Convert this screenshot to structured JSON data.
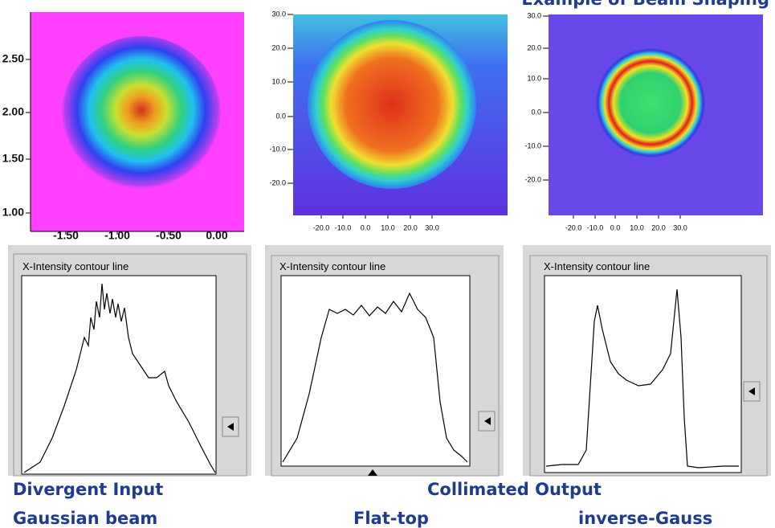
{
  "title": "Example of Beam Shaping",
  "panels": [
    {
      "yticks": [
        "2.50",
        "2.00",
        "1.50",
        "1.00"
      ],
      "xticks": [
        "-1.50",
        "-1.00",
        "-0.50",
        "0.00"
      ],
      "profile_label": "X-Intensity contour line"
    },
    {
      "yticks": [
        "30.0",
        "20.0",
        "10.0",
        "0.0",
        "-10.0",
        "-20.0"
      ],
      "xticks": [
        "-20.0",
        "-10.0",
        "0.0",
        "10.0",
        "20.0",
        "30.0"
      ],
      "profile_label": "X-Intensity contour line"
    },
    {
      "yticks": [
        "30.0",
        "20.0",
        "10.0",
        "0.0",
        "-10.0",
        "-20.0"
      ],
      "xticks": [
        "-20.0",
        "-10.0",
        "0.0",
        "10.0",
        "20.0",
        "30.0"
      ],
      "profile_label": "X-Intensity contour line"
    }
  ],
  "captions": {
    "input": "Divergent Input",
    "output": "Collimated Output",
    "gaussian": "Gaussian beam",
    "flat_top": "Flat-top",
    "inverse_gauss": "inverse-Gauss"
  }
}
